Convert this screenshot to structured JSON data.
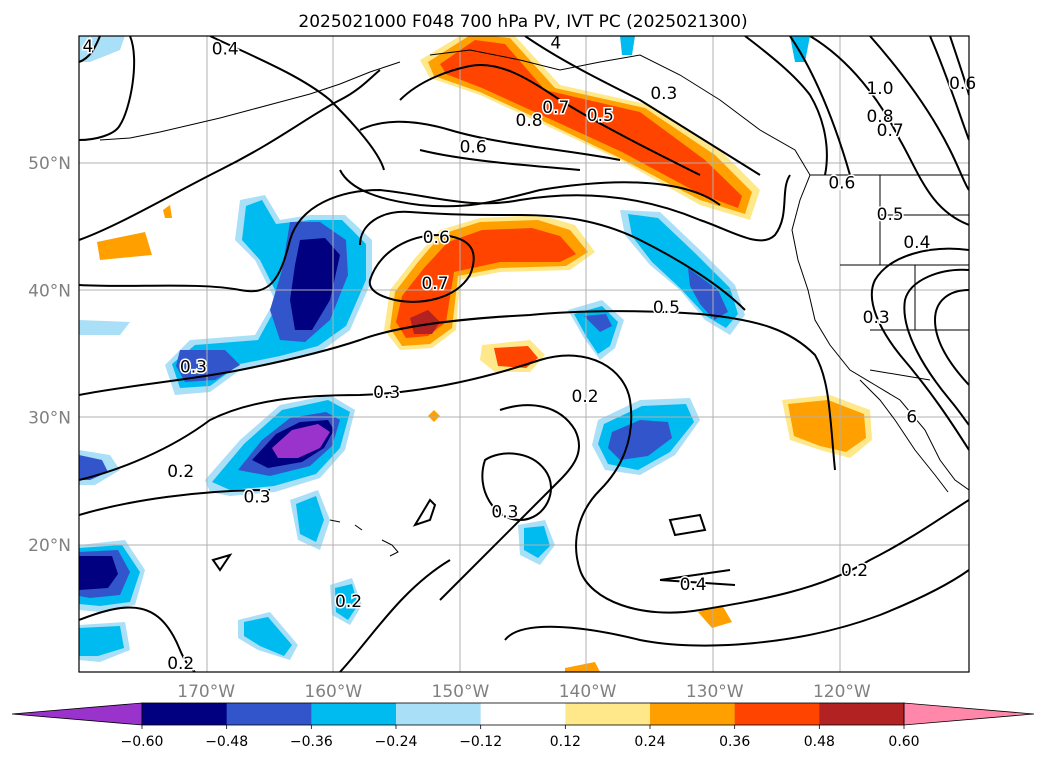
{
  "title": "2025021000 F048 700 hPa PV, IVT PC (2025021300)",
  "chart_data": {
    "type": "contour-map",
    "title": "2025021000 F048 700 hPa PV, IVT PC (2025021300)",
    "lon_range": [
      -180,
      -110
    ],
    "lat_range": [
      10,
      60
    ],
    "grid": true,
    "x_ticks": [
      {
        "lon": -170,
        "label": "170°W"
      },
      {
        "lon": -160,
        "label": "160°W"
      },
      {
        "lon": -150,
        "label": "150°W"
      },
      {
        "lon": -140,
        "label": "140°W"
      },
      {
        "lon": -130,
        "label": "130°W"
      },
      {
        "lon": -120,
        "label": "120°W"
      }
    ],
    "y_ticks": [
      {
        "lat": 50,
        "label": "50°N"
      },
      {
        "lat": 40,
        "label": "40°N"
      },
      {
        "lat": 30,
        "label": "30°N"
      },
      {
        "lat": 20,
        "label": "20°N"
      }
    ],
    "colorbar": {
      "orientation": "horizontal",
      "extend": "both",
      "levels": [
        -0.6,
        -0.48,
        -0.36,
        -0.24,
        -0.12,
        0.12,
        0.24,
        0.36,
        0.48,
        0.6
      ],
      "tick_labels": [
        "−0.60",
        "−0.48",
        "−0.36",
        "−0.24",
        "−0.12",
        "0.12",
        "0.24",
        "0.36",
        "0.48",
        "0.60"
      ],
      "colors": [
        "#9933cc",
        "#000080",
        "#3355cc",
        "#00bbf0",
        "#aadff8",
        "#ffffff",
        "#ffe88a",
        "#ffa000",
        "#ff4400",
        "#b22222",
        "#ff88aa"
      ]
    },
    "contour_labels": [
      {
        "text": "4",
        "lon": -179.3,
        "lat": 59.2
      },
      {
        "text": "0.4",
        "lon": -168.5,
        "lat": 59.0
      },
      {
        "text": "4",
        "lon": -142.5,
        "lat": 59.5
      },
      {
        "text": "0.3",
        "lon": -134.0,
        "lat": 55.5
      },
      {
        "text": "0.7",
        "lon": -142.5,
        "lat": 54.4
      },
      {
        "text": "0.8",
        "lon": -144.6,
        "lat": 53.4
      },
      {
        "text": "0.5",
        "lon": -139.0,
        "lat": 53.8
      },
      {
        "text": "0.6",
        "lon": -149.0,
        "lat": 51.3
      },
      {
        "text": "1.0",
        "lon": -117.0,
        "lat": 55.9
      },
      {
        "text": "0.8",
        "lon": -117.0,
        "lat": 53.7
      },
      {
        "text": "0.7",
        "lon": -116.2,
        "lat": 52.6
      },
      {
        "text": "0.6",
        "lon": -110.5,
        "lat": 56.3
      },
      {
        "text": "0.6",
        "lon": -120.0,
        "lat": 48.5
      },
      {
        "text": "0.5",
        "lon": -116.2,
        "lat": 46.0
      },
      {
        "text": "0.4",
        "lon": -114.1,
        "lat": 43.8
      },
      {
        "text": "0.3",
        "lon": -117.3,
        "lat": 37.9
      },
      {
        "text": "0.6",
        "lon": -151.9,
        "lat": 44.2
      },
      {
        "text": "0.7",
        "lon": -152.0,
        "lat": 40.6
      },
      {
        "text": "0.5",
        "lon": -133.8,
        "lat": 38.7
      },
      {
        "text": "0.3",
        "lon": -171.0,
        "lat": 34.0
      },
      {
        "text": "0.3",
        "lon": -155.8,
        "lat": 32.0
      },
      {
        "text": "0.2",
        "lon": -140.2,
        "lat": 31.7
      },
      {
        "text": "0.2",
        "lon": -172.0,
        "lat": 25.8
      },
      {
        "text": "0.3",
        "lon": -166.0,
        "lat": 23.8
      },
      {
        "text": "0.3",
        "lon": -146.5,
        "lat": 22.6
      },
      {
        "text": "0.4",
        "lon": -131.7,
        "lat": 16.9
      },
      {
        "text": "0.2",
        "lon": -119.0,
        "lat": 18.0
      },
      {
        "text": "0.2",
        "lon": -158.8,
        "lat": 15.6
      },
      {
        "text": "0.2",
        "lon": -172.0,
        "lat": 10.7
      },
      {
        "text": "6",
        "lon": -114.5,
        "lat": 30.1
      }
    ]
  }
}
